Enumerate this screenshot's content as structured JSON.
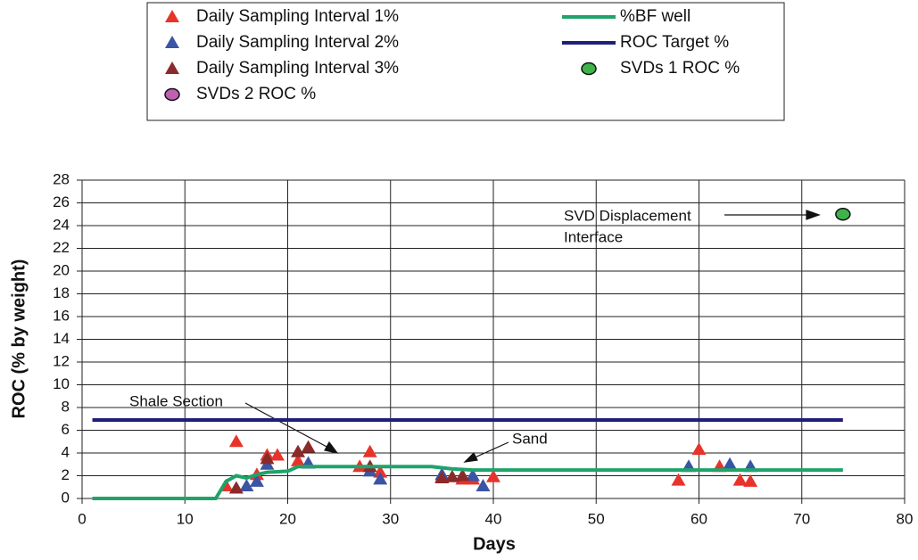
{
  "chart_data": {
    "type": "scatter",
    "x_label": "Days",
    "y_label": "ROC (% by weight)",
    "xlim": [
      0,
      80
    ],
    "xticks": [
      0,
      10,
      20,
      30,
      40,
      50,
      60,
      70,
      80
    ],
    "ylim": [
      0,
      28
    ],
    "yticks": [
      0,
      2,
      4,
      6,
      8,
      10,
      12,
      14,
      16,
      18,
      20,
      22,
      24,
      26,
      28
    ],
    "grid": true,
    "annotations": [
      "Shale Section",
      "Sand",
      "SVD Displacement",
      "Interface"
    ],
    "series": [
      {
        "name": "Daily Sampling Interval 1%",
        "marker": "triangle",
        "color": "#e8332a",
        "x": [
          14,
          15,
          17,
          18,
          19,
          21,
          27,
          28,
          29,
          35,
          37,
          38,
          40,
          58,
          60,
          62,
          64,
          65
        ],
        "values": [
          1.1,
          5,
          2.1,
          3.8,
          3.8,
          3.3,
          2.8,
          4.1,
          2.3,
          1.9,
          1.7,
          1.7,
          1.9,
          1.6,
          4.3,
          2.8,
          1.6,
          1.5
        ]
      },
      {
        "name": "Daily Sampling Interval 2%",
        "marker": "triangle",
        "color": "#3a55a5",
        "x": [
          16,
          17,
          18,
          22,
          28,
          29,
          35,
          38,
          39,
          59,
          63,
          65
        ],
        "values": [
          1.1,
          1.5,
          3.0,
          3.1,
          2.4,
          1.7,
          2.1,
          2.0,
          1.1,
          2.8,
          3.0,
          2.8
        ]
      },
      {
        "name": "Daily Sampling Interval 3%",
        "marker": "triangle",
        "color": "#8b2a2a",
        "x": [
          15,
          18,
          21,
          22,
          28,
          35,
          36,
          37
        ],
        "values": [
          0.9,
          3.5,
          4.1,
          4.5,
          2.8,
          1.8,
          1.9,
          2.0
        ]
      },
      {
        "name": "SVDs 2 ROC  %",
        "marker": "circle",
        "color": "#c060b0",
        "x": [],
        "values": []
      },
      {
        "name": "%BF well",
        "marker": "line",
        "color": "#1fa36a",
        "x": [
          1,
          13,
          14,
          15,
          16,
          17,
          18,
          20,
          21,
          34,
          36,
          38,
          74
        ],
        "values": [
          0,
          0,
          1.5,
          2,
          1.8,
          2.1,
          2.3,
          2.4,
          2.8,
          2.8,
          2.6,
          2.5,
          2.5
        ]
      },
      {
        "name": "ROC Target %",
        "marker": "line",
        "color": "#1f1f7a",
        "x": [
          1,
          74
        ],
        "values": [
          6.9,
          6.9
        ]
      },
      {
        "name": "SVDs 1 ROC  %",
        "marker": "circle",
        "color": "#3db34a",
        "x": [
          74
        ],
        "values": [
          25
        ]
      }
    ]
  }
}
